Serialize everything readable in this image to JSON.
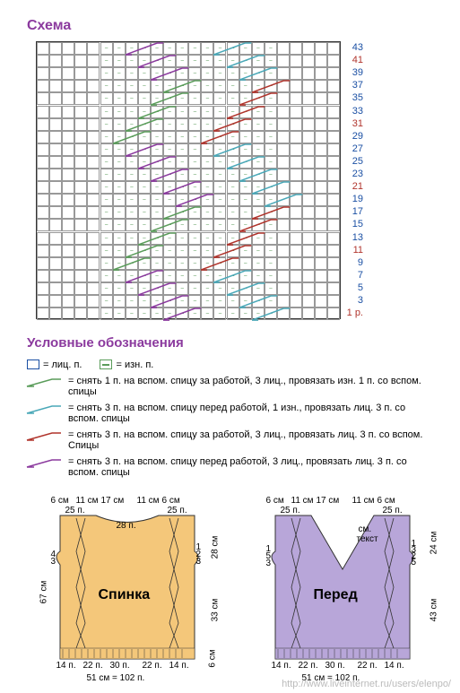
{
  "chart": {
    "title": "Схема",
    "grid_cols": 24,
    "grid_rows": 22,
    "cell_size": 14.1,
    "row_labels": [
      {
        "row": 0,
        "text": "43",
        "color": "#1a4fa3"
      },
      {
        "row": 1,
        "text": "41",
        "color": "#b0342c"
      },
      {
        "row": 2,
        "text": "39",
        "color": "#1a4fa3"
      },
      {
        "row": 3,
        "text": "37",
        "color": "#1a4fa3"
      },
      {
        "row": 4,
        "text": "35",
        "color": "#1a4fa3"
      },
      {
        "row": 5,
        "text": "33",
        "color": "#1a4fa3"
      },
      {
        "row": 6,
        "text": "31",
        "color": "#b0342c"
      },
      {
        "row": 7,
        "text": "29",
        "color": "#1a4fa3"
      },
      {
        "row": 8,
        "text": "27",
        "color": "#1a4fa3"
      },
      {
        "row": 9,
        "text": "25",
        "color": "#1a4fa3"
      },
      {
        "row": 10,
        "text": "23",
        "color": "#1a4fa3"
      },
      {
        "row": 11,
        "text": "21",
        "color": "#b0342c"
      },
      {
        "row": 12,
        "text": "19",
        "color": "#1a4fa3"
      },
      {
        "row": 13,
        "text": "17",
        "color": "#1a4fa3"
      },
      {
        "row": 14,
        "text": "15",
        "color": "#1a4fa3"
      },
      {
        "row": 15,
        "text": "13",
        "color": "#1a4fa3"
      },
      {
        "row": 16,
        "text": "11",
        "color": "#b0342c"
      },
      {
        "row": 17,
        "text": "9",
        "color": "#1a4fa3"
      },
      {
        "row": 18,
        "text": "7",
        "color": "#1a4fa3"
      },
      {
        "row": 19,
        "text": "5",
        "color": "#1a4fa3"
      },
      {
        "row": 20,
        "text": "3",
        "color": "#1a4fa3"
      },
      {
        "row": 21,
        "text": "1 р.",
        "color": "#b0342c"
      }
    ],
    "dash_rows": [
      0,
      1,
      2,
      3,
      4,
      5,
      6,
      7,
      8,
      9,
      10,
      11,
      12,
      13,
      14,
      15,
      16,
      17,
      18,
      19,
      20,
      21
    ],
    "cables": [
      {
        "row": 0,
        "c1": 7,
        "c2": 14,
        "color1": "#8b3a9e",
        "color2": "#4aa8b8"
      },
      {
        "row": 1,
        "c1": 8,
        "c2": 15,
        "color1": "#8b3a9e",
        "color2": "#4aa8b8"
      },
      {
        "row": 2,
        "c1": 9,
        "c2": 16,
        "color1": "#8b3a9e",
        "color2": "#4aa8b8"
      },
      {
        "row": 3,
        "c1": 10,
        "c2": 17,
        "color1": "#5a9c5a",
        "color2": "#b0342c"
      },
      {
        "row": 4,
        "c1": 9,
        "c2": 16,
        "color1": "#5a9c5a",
        "color2": "#b0342c"
      },
      {
        "row": 5,
        "c1": 8,
        "c2": 15,
        "color1": "#5a9c5a",
        "color2": "#b0342c"
      },
      {
        "row": 6,
        "c1": 7,
        "c2": 14,
        "color1": "#5a9c5a",
        "color2": "#b0342c"
      },
      {
        "row": 7,
        "c1": 6,
        "c2": 13,
        "color1": "#5a9c5a",
        "color2": "#b0342c"
      },
      {
        "row": 8,
        "c1": 7,
        "c2": 14,
        "color1": "#8b3a9e",
        "color2": "#4aa8b8"
      },
      {
        "row": 9,
        "c1": 8,
        "c2": 15,
        "color1": "#8b3a9e",
        "color2": "#4aa8b8"
      },
      {
        "row": 10,
        "c1": 9,
        "c2": 16,
        "color1": "#8b3a9e",
        "color2": "#4aa8b8"
      },
      {
        "row": 11,
        "c1": 10,
        "c2": 17,
        "color1": "#8b3a9e",
        "color2": "#4aa8b8"
      },
      {
        "row": 12,
        "c1": 11,
        "c2": 18,
        "color1": "#8b3a9e",
        "color2": "#4aa8b8"
      },
      {
        "row": 13,
        "c1": 10,
        "c2": 17,
        "color1": "#5a9c5a",
        "color2": "#b0342c"
      },
      {
        "row": 14,
        "c1": 9,
        "c2": 16,
        "color1": "#5a9c5a",
        "color2": "#b0342c"
      },
      {
        "row": 15,
        "c1": 8,
        "c2": 15,
        "color1": "#5a9c5a",
        "color2": "#b0342c"
      },
      {
        "row": 16,
        "c1": 7,
        "c2": 14,
        "color1": "#5a9c5a",
        "color2": "#b0342c"
      },
      {
        "row": 17,
        "c1": 6,
        "c2": 13,
        "color1": "#5a9c5a",
        "color2": "#b0342c"
      },
      {
        "row": 18,
        "c1": 7,
        "c2": 14,
        "color1": "#8b3a9e",
        "color2": "#4aa8b8"
      },
      {
        "row": 19,
        "c1": 8,
        "c2": 15,
        "color1": "#8b3a9e",
        "color2": "#4aa8b8"
      },
      {
        "row": 20,
        "c1": 9,
        "c2": 16,
        "color1": "#8b3a9e",
        "color2": "#4aa8b8"
      },
      {
        "row": 21,
        "c1": 10,
        "c2": 17,
        "color1": "#8b3a9e",
        "color2": "#4aa8b8"
      }
    ]
  },
  "legend": {
    "title": "Условные обозначения",
    "symbols": [
      {
        "glyph": "□",
        "border": "#1a4fa3",
        "text": "= лиц. п."
      },
      {
        "glyph": "⊟",
        "border": "#5a9c5a",
        "text": "= изн. п."
      }
    ],
    "cables": [
      {
        "color": "#5a9c5a",
        "text": "= снять 1 п. на вспом. спицу за работой, 3 лиц., провязать изн. 1 п. со вспом. спицы"
      },
      {
        "color": "#4aa8b8",
        "text": "= снять 3 п. на вспом. спицу перед работой, 1 изн., провязать лиц. 3 п. со вспом. спицы"
      },
      {
        "color": "#b0342c",
        "text": "= снять 3 п. на вспом. спицу за работой, 3 лиц., провязать лиц. 3 п. со вспом. Спицы"
      },
      {
        "color": "#8b3a9e",
        "text": "= снять 3 п. на вспом. спицу перед работой, 3 лиц., провязать лиц. 3 п. со вспом. спицы"
      }
    ]
  },
  "schematics": {
    "back": {
      "title": "Спинка",
      "fill": "#f4c77a",
      "top": [
        "6 см",
        "11 см",
        "17 см",
        "11 см",
        "6 см"
      ],
      "sub": [
        "25 п.",
        "25 п."
      ],
      "mid": "28 п.",
      "bot_st": [
        "14 п.",
        "22 п.",
        "30 п.",
        "22 п.",
        "14 п."
      ],
      "bot_cm": "51 см = 102 п.",
      "left_h": "67 см",
      "rh_top": "28 см",
      "rh_bot": "33 см",
      "rh_rib": "6 см",
      "notch": [
        "4",
        "3"
      ],
      "notchr": [
        "1",
        "2",
        "3"
      ]
    },
    "front": {
      "title": "Перед",
      "fill": "#b8a6d9",
      "top": [
        "6 см",
        "11 см",
        "17 см",
        "11 см",
        "6 см"
      ],
      "sub": [
        "25 п.",
        "25 п."
      ],
      "mid": "см. текст",
      "bot_st": [
        "14 п.",
        "22 п.",
        "30 п.",
        "22 п.",
        "14 п."
      ],
      "bot_cm": "51 см = 102 п.",
      "rh1": "24 см",
      "rh2": "43 см",
      "notch": [
        "1",
        "5",
        "3"
      ],
      "notchr": [
        "1",
        "3",
        "2",
        "5"
      ]
    }
  },
  "watermark": "http://www.liveinternet.ru/users/elenpo/"
}
